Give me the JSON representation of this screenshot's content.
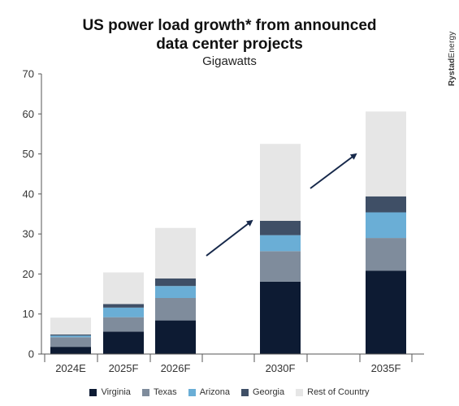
{
  "brand": {
    "part1": "Rystad",
    "part2": "Energy"
  },
  "chart_data": {
    "type": "bar",
    "stacked": true,
    "title": "US power load growth* from announced data center projects",
    "title_lines": [
      "US power load growth* from announced",
      "data center projects"
    ],
    "subtitle": "Gigawatts",
    "categories": [
      "2024E",
      "2025F",
      "2026F",
      "2030F",
      "2035F"
    ],
    "ylim": [
      0,
      70
    ],
    "yticks": [
      0,
      10,
      20,
      30,
      40,
      50,
      60,
      70
    ],
    "grid": false,
    "legend_position": "bottom",
    "series": [
      {
        "name": "Virginia",
        "color": "#0d1b33",
        "values": [
          1.8,
          5.6,
          8.4,
          18.1,
          20.8
        ]
      },
      {
        "name": "Texas",
        "color": "#7f8c9c",
        "values": [
          2.4,
          3.6,
          5.6,
          7.6,
          8.2
        ]
      },
      {
        "name": "Arizona",
        "color": "#6aaed6",
        "values": [
          0.4,
          2.4,
          3.0,
          4.0,
          6.4
        ]
      },
      {
        "name": "Georgia",
        "color": "#3f4f66",
        "values": [
          0.3,
          0.9,
          1.9,
          3.6,
          4.0
        ]
      },
      {
        "name": "Rest of Country",
        "color": "#e6e6e6",
        "values": [
          4.2,
          7.9,
          12.6,
          19.2,
          21.2
        ]
      }
    ]
  }
}
